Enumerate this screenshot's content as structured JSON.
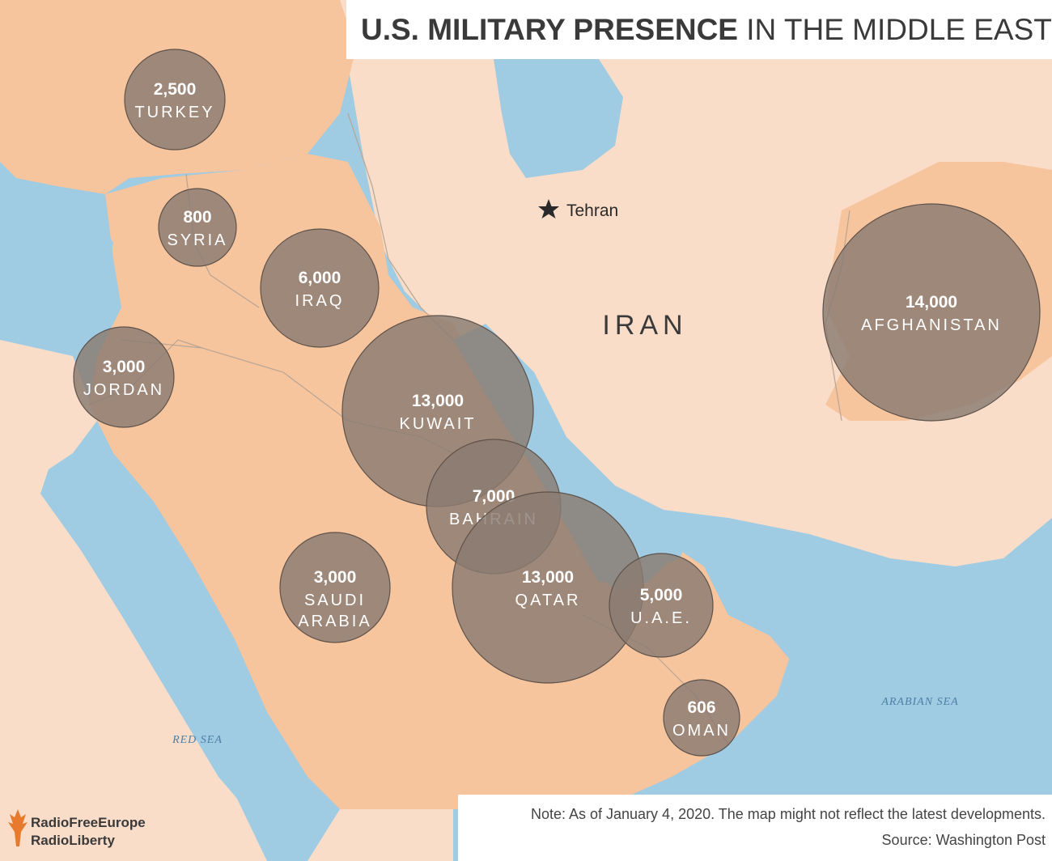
{
  "title": {
    "bold": "U.S. MILITARY PRESENCE",
    "regular": "IN THE MIDDLE EAST"
  },
  "map_labels": {
    "iran": "IRAN",
    "tehran": "Tehran",
    "red_sea": "RED SEA",
    "arabian_sea": "ARABIAN SEA"
  },
  "bubbles": [
    {
      "id": "turkey",
      "value": "2,500",
      "name": "TURKEY",
      "troops": 2500
    },
    {
      "id": "syria",
      "value": "800",
      "name": "SYRIA",
      "troops": 800
    },
    {
      "id": "iraq",
      "value": "6,000",
      "name": "IRAQ",
      "troops": 6000
    },
    {
      "id": "jordan",
      "value": "3,000",
      "name": "JORDAN",
      "troops": 3000
    },
    {
      "id": "kuwait",
      "value": "13,000",
      "name": "KUWAIT",
      "troops": 13000
    },
    {
      "id": "bahrain",
      "value": "7,000",
      "name": "BAHRAIN",
      "troops": 7000
    },
    {
      "id": "saudi-arabia",
      "value": "3,000",
      "name": "SAUDI",
      "name2": "ARABIA",
      "troops": 3000
    },
    {
      "id": "qatar",
      "value": "13,000",
      "name": "QATAR",
      "troops": 13000
    },
    {
      "id": "uae",
      "value": "5,000",
      "name": "U.A.E.",
      "troops": 5000
    },
    {
      "id": "oman",
      "value": "606",
      "name": "OMAN",
      "troops": 606
    },
    {
      "id": "afghanistan",
      "value": "14,000",
      "name": "AFGHANISTAN",
      "troops": 14000
    }
  ],
  "note": "Note: As of January 4, 2020. The map might not reflect the latest developments.",
  "source": "Source: Washington Post",
  "logo": {
    "line1": "RadioFreeEurope",
    "line2": "RadioLiberty"
  },
  "colors": {
    "sea": "#9fcbe3",
    "land_light": "#f9ddc9",
    "land_highlight": "#f6c49d",
    "bubble": "#8a7b71",
    "logo_accent": "#e87a2d"
  }
}
